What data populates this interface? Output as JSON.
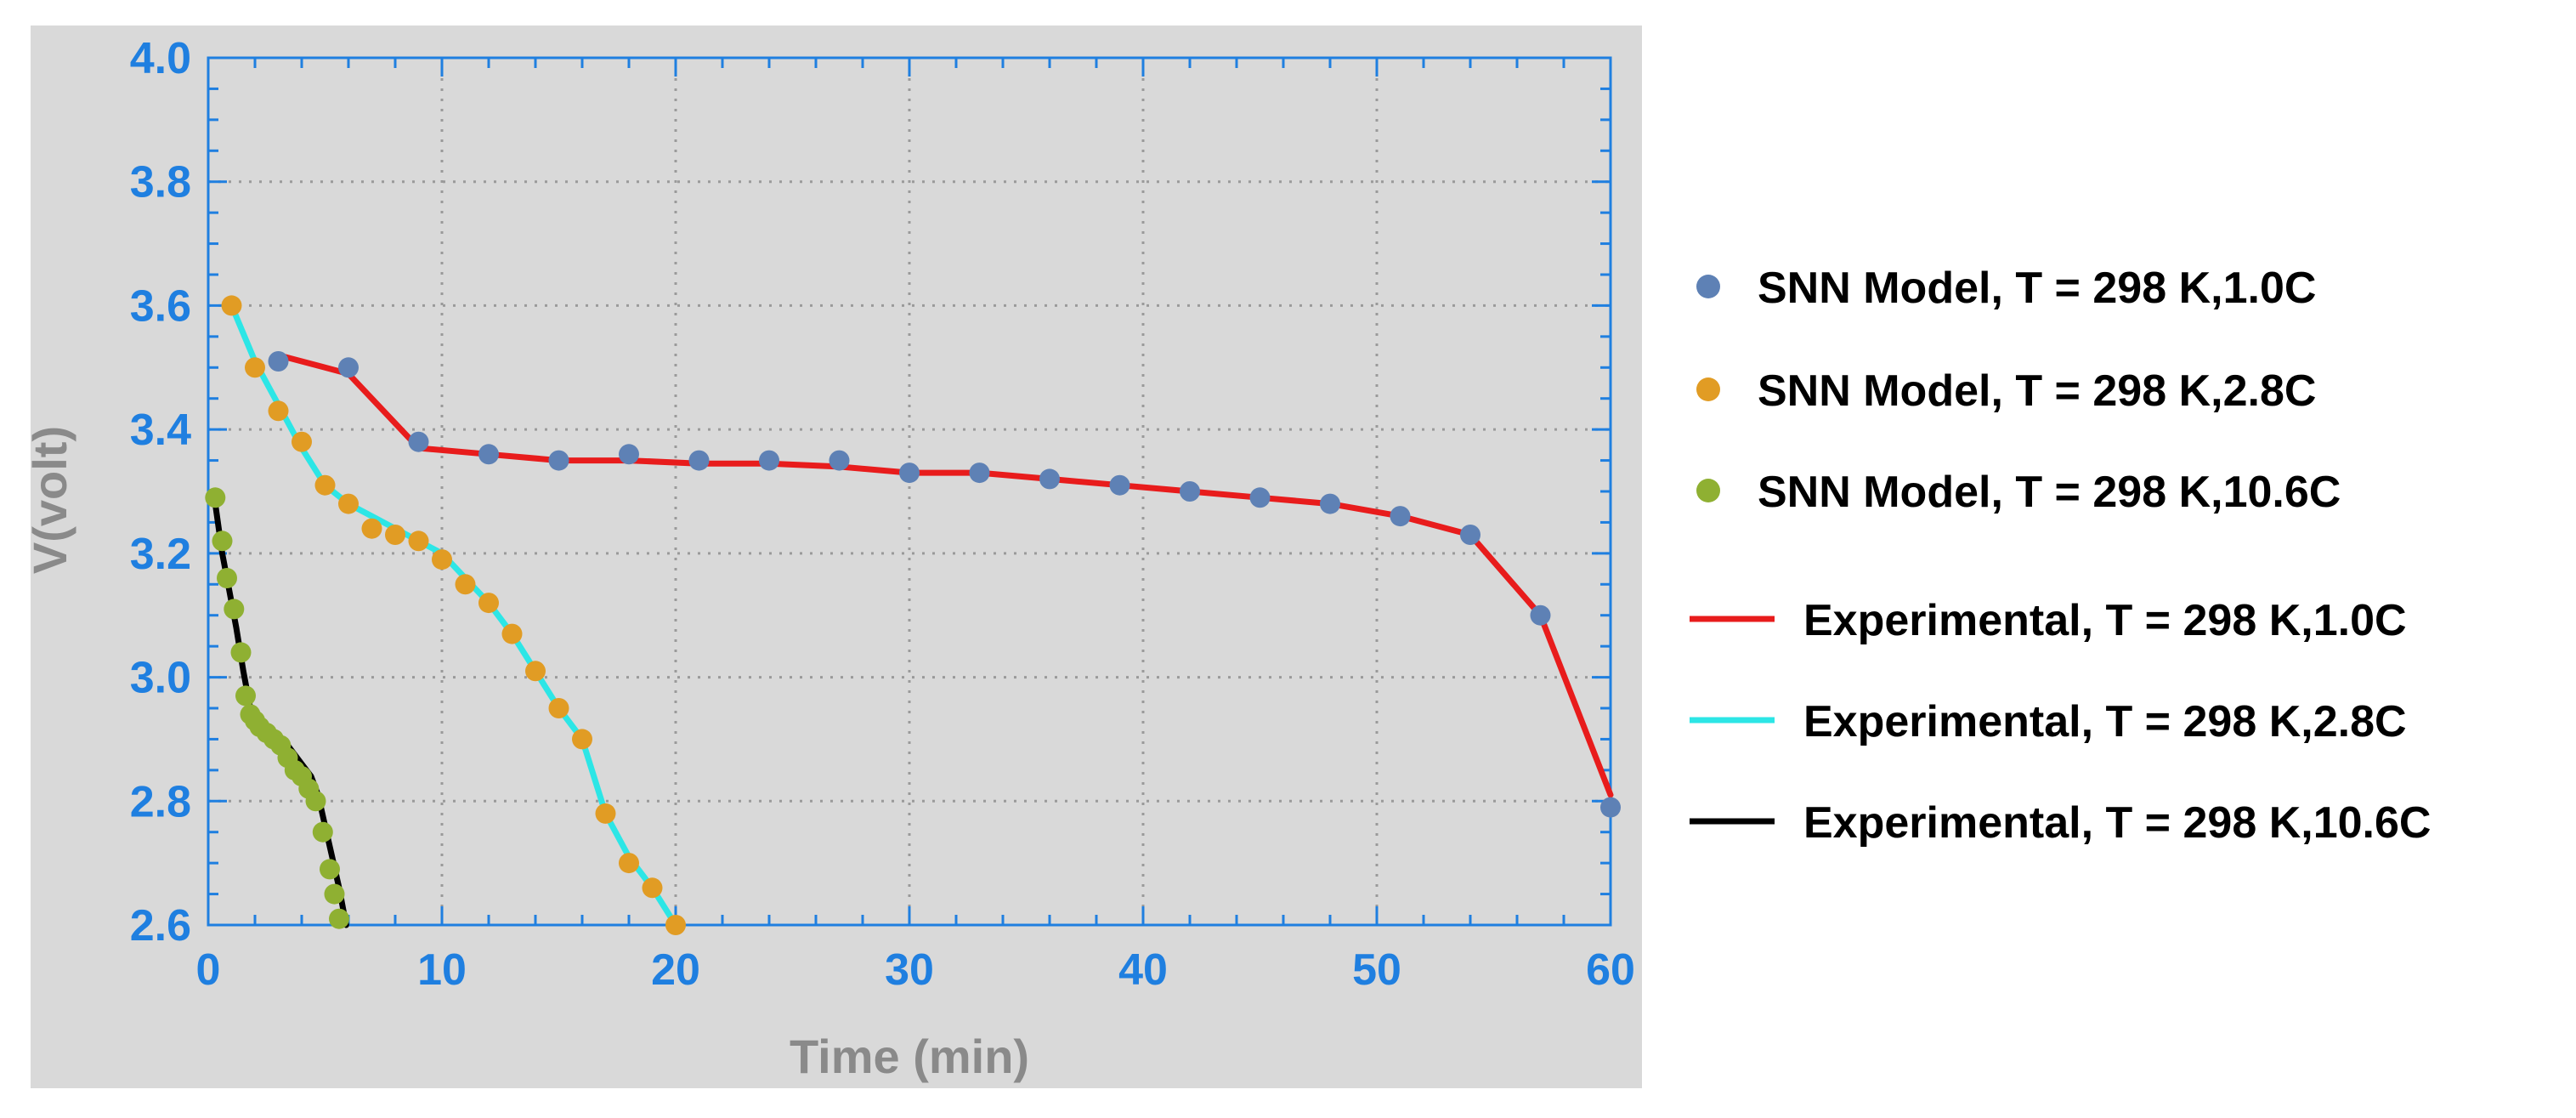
{
  "chart_data": {
    "type": "scatter",
    "xlabel": "Time (min)",
    "ylabel": "V(volt)",
    "xlim": [
      0,
      60
    ],
    "ylim": [
      2.6,
      4.0
    ],
    "xticks": [
      "0",
      "10",
      "20",
      "30",
      "40",
      "50",
      "60"
    ],
    "yticks": [
      "2.6",
      "2.8",
      "3.0",
      "3.2",
      "3.4",
      "3.6",
      "3.8",
      "4.0"
    ],
    "grid": true,
    "legend_position": "right",
    "colors": {
      "plot_background": "#d9d9d9",
      "axis": "#1f7fe0",
      "grid": "#9a9a9a",
      "tick_label": "#1f7fe0",
      "axis_title": "#8a8a8a"
    },
    "series": [
      {
        "name": "SNN Model, T = 298 K,1.0C",
        "kind": "markers",
        "color": "#5e81b5",
        "x": [
          3,
          6,
          9,
          12,
          15,
          18,
          21,
          24,
          27,
          30,
          33,
          36,
          39,
          42,
          45,
          48,
          51,
          54,
          57,
          60
        ],
        "y": [
          3.51,
          3.5,
          3.38,
          3.36,
          3.35,
          3.36,
          3.35,
          3.35,
          3.35,
          3.33,
          3.33,
          3.32,
          3.31,
          3.3,
          3.29,
          3.28,
          3.26,
          3.23,
          3.1,
          2.79
        ]
      },
      {
        "name": "SNN Model, T = 298 K,2.8C",
        "kind": "markers",
        "color": "#e19c24",
        "x": [
          1,
          2,
          3,
          4,
          5,
          6,
          7,
          8,
          9,
          10,
          11,
          12,
          13,
          14,
          15,
          16,
          17,
          18,
          19,
          20
        ],
        "y": [
          3.6,
          3.5,
          3.43,
          3.38,
          3.31,
          3.28,
          3.24,
          3.23,
          3.22,
          3.19,
          3.15,
          3.12,
          3.07,
          3.01,
          2.95,
          2.9,
          2.78,
          2.7,
          2.66,
          2.6
        ]
      },
      {
        "name": "SNN Model, T = 298 K,10.6C",
        "kind": "markers",
        "color": "#8fb032",
        "x": [
          0.3,
          0.6,
          0.8,
          1.1,
          1.4,
          1.6,
          1.8,
          2.0,
          2.2,
          2.5,
          2.8,
          3.1,
          3.4,
          3.7,
          4.0,
          4.3,
          4.6,
          4.9,
          5.2,
          5.4,
          5.6
        ],
        "y": [
          3.29,
          3.22,
          3.16,
          3.11,
          3.04,
          2.97,
          2.94,
          2.93,
          2.92,
          2.91,
          2.9,
          2.89,
          2.87,
          2.85,
          2.84,
          2.82,
          2.8,
          2.75,
          2.69,
          2.65,
          2.61
        ]
      },
      {
        "name": "Experimental, T = 298 K,1.0C",
        "kind": "line",
        "color": "#e81c1c",
        "x": [
          3,
          6,
          9,
          12,
          15,
          18,
          21,
          24,
          27,
          30,
          33,
          36,
          39,
          42,
          45,
          48,
          51,
          54,
          57,
          60
        ],
        "y": [
          3.52,
          3.49,
          3.37,
          3.36,
          3.35,
          3.35,
          3.345,
          3.345,
          3.34,
          3.33,
          3.33,
          3.32,
          3.31,
          3.3,
          3.29,
          3.28,
          3.26,
          3.23,
          3.1,
          2.81
        ]
      },
      {
        "name": "Experimental, T = 298 K,2.8C",
        "kind": "line",
        "color": "#2ce6e6",
        "x": [
          1,
          2,
          3,
          4,
          5,
          6,
          7,
          8,
          9,
          10,
          11,
          12,
          13,
          14,
          15,
          16,
          17,
          18,
          19,
          20
        ],
        "y": [
          3.6,
          3.51,
          3.44,
          3.37,
          3.31,
          3.28,
          3.26,
          3.24,
          3.22,
          3.2,
          3.16,
          3.12,
          3.07,
          3.01,
          2.95,
          2.9,
          2.78,
          2.71,
          2.66,
          2.6
        ]
      },
      {
        "name": "Experimental, T = 298 K,10.6C",
        "kind": "line",
        "color": "#000000",
        "x": [
          0.3,
          0.6,
          0.9,
          1.2,
          1.5,
          1.8,
          2.1,
          2.4,
          2.8,
          3.2,
          3.6,
          4.0,
          4.4,
          4.7,
          5.0,
          5.3,
          5.6,
          5.9
        ],
        "y": [
          3.28,
          3.2,
          3.14,
          3.08,
          3.01,
          2.95,
          2.93,
          2.92,
          2.91,
          2.9,
          2.88,
          2.86,
          2.84,
          2.81,
          2.76,
          2.71,
          2.66,
          2.6
        ]
      }
    ]
  }
}
